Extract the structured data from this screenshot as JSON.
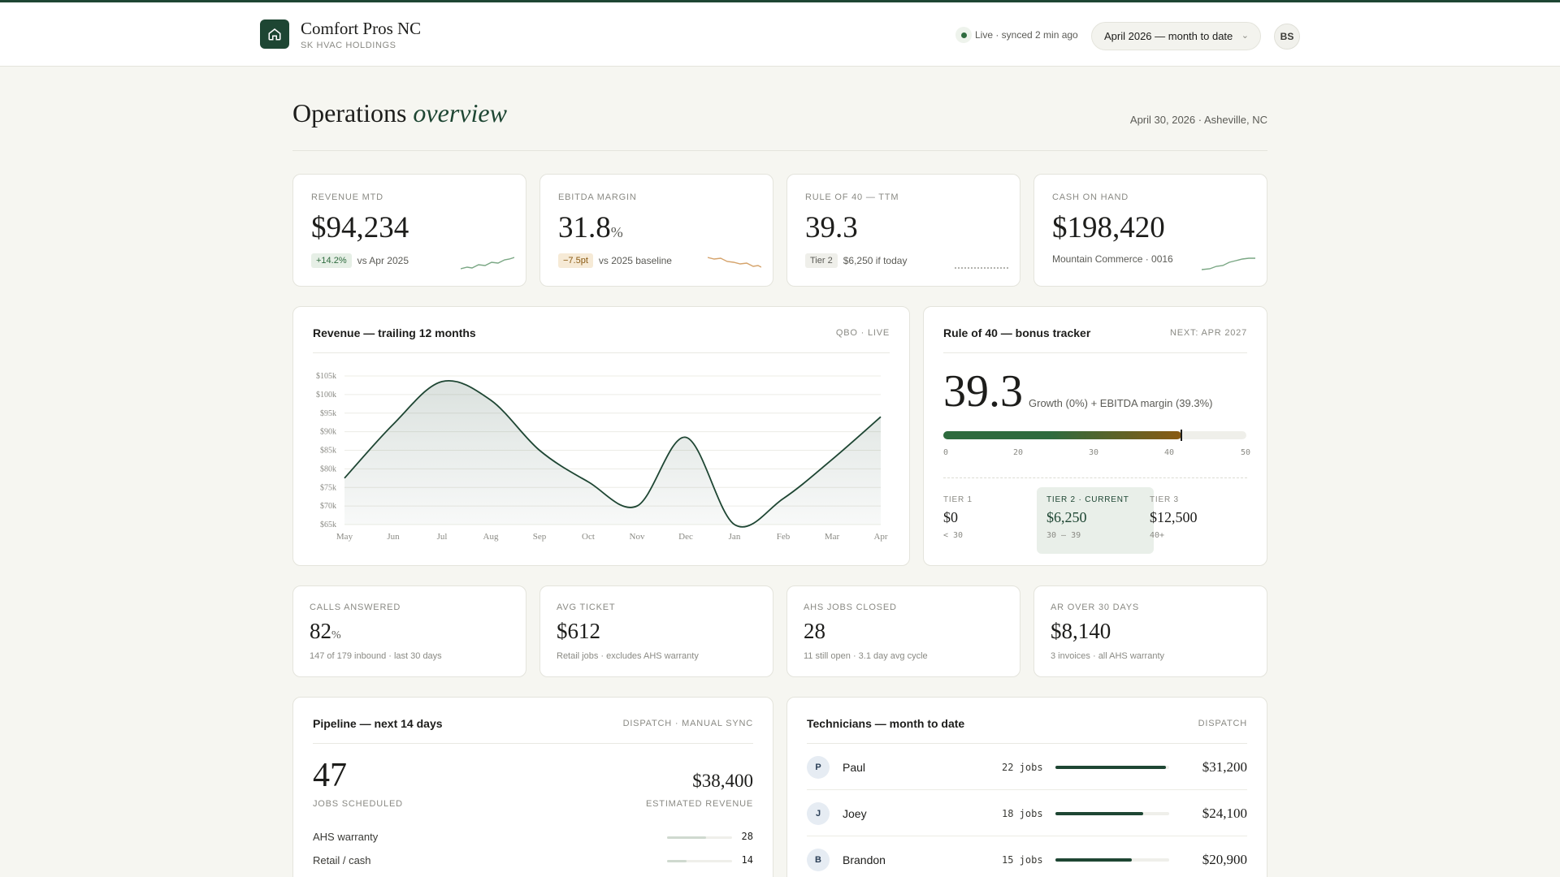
{
  "header": {
    "company": "Comfort Pros NC",
    "holding": "SK HVAC HOLDINGS",
    "live_status": "Live · synced 2 min ago",
    "period": "April 2026 — month to date",
    "user_initials": "BS"
  },
  "page": {
    "title_main": "Operations",
    "title_accent": "overview",
    "date_location": "April 30, 2026 · Asheville, NC"
  },
  "kpis": [
    {
      "label": "REVENUE MTD",
      "value": "$94,234",
      "chip": "+14.2%",
      "note": "vs Apr 2025",
      "spark_color": "#7aa784"
    },
    {
      "label": "EBITDA MARGIN",
      "value": "31.8",
      "unit": "%",
      "chip": "−7.5pt",
      "note": "vs 2025 baseline",
      "spark_color": "#d5a36b"
    },
    {
      "label": "RULE OF 40 — TTM",
      "value": "39.3",
      "chip": "Tier 2",
      "note": "$6,250 if today",
      "spark_color": "#9a9a94"
    },
    {
      "label": "CASH ON HAND",
      "value": "$198,420",
      "note": "Mountain Commerce · 0016",
      "spark_color": "#7aa784"
    }
  ],
  "revenue_chart": {
    "title": "Revenue — trailing 12 months",
    "tag": "QBO · LIVE"
  },
  "chart_data": {
    "type": "area",
    "categories": [
      "May",
      "Jun",
      "Jul",
      "Aug",
      "Sep",
      "Oct",
      "Nov",
      "Dec",
      "Jan",
      "Feb",
      "Mar",
      "Apr"
    ],
    "values": [
      77500,
      92000,
      103500,
      98500,
      85000,
      76500,
      70000,
      88500,
      65000,
      72000,
      82500,
      94000
    ],
    "yticks": [
      "$105k",
      "$100k",
      "$95k",
      "$90k",
      "$85k",
      "$80k",
      "$75k",
      "$70k",
      "$65k"
    ],
    "ylim": [
      65000,
      105000
    ],
    "color": "#1e4633",
    "grid": true
  },
  "rule40": {
    "title": "Rule of 40 — bonus tracker",
    "tag": "NEXT: APR 2027",
    "score": "39.3",
    "score_value": 39.3,
    "description": "Growth (0%) + EBITDA margin (39.3%)",
    "scale_max": 50,
    "ticks": [
      "0",
      "20",
      "30",
      "40",
      "50"
    ],
    "tiers": [
      {
        "label": "TIER 1",
        "amount": "$0",
        "range": "< 30"
      },
      {
        "label": "TIER 2 · CURRENT",
        "amount": "$6,250",
        "range": "30 — 39"
      },
      {
        "label": "TIER 3",
        "amount": "$12,500",
        "range": "40+"
      }
    ]
  },
  "stats": [
    {
      "label": "CALLS ANSWERED",
      "value": "82",
      "unit": "%",
      "sub": "147 of 179 inbound · last 30 days"
    },
    {
      "label": "AVG TICKET",
      "value": "$612",
      "sub": "Retail jobs · excludes AHS warranty"
    },
    {
      "label": "AHS JOBS CLOSED",
      "value": "28",
      "sub": "11 still open · 3.1 day avg cycle"
    },
    {
      "label": "AR OVER 30 DAYS",
      "value": "$8,140",
      "sub": "3 invoices · all AHS warranty"
    }
  ],
  "pipeline": {
    "title": "Pipeline — next 14 days",
    "tag": "DISPATCH · MANUAL SYNC",
    "jobs": "47",
    "jobs_label": "JOBS SCHEDULED",
    "revenue": "$38,400",
    "revenue_label": "ESTIMATED REVENUE",
    "rows": [
      {
        "label": "AHS warranty",
        "count": "28",
        "fraction": 0.6
      },
      {
        "label": "Retail / cash",
        "count": "14",
        "fraction": 0.3
      }
    ]
  },
  "technicians": {
    "title": "Technicians — month to date",
    "tag": "DISPATCH",
    "rows": [
      {
        "initial": "P",
        "name": "Paul",
        "jobs": "22 jobs",
        "amount": "$31,200",
        "fraction": 0.97
      },
      {
        "initial": "J",
        "name": "Joey",
        "jobs": "18 jobs",
        "amount": "$24,100",
        "fraction": 0.77
      },
      {
        "initial": "B",
        "name": "Brandon",
        "jobs": "15 jobs",
        "amount": "$20,900",
        "fraction": 0.67
      }
    ]
  }
}
